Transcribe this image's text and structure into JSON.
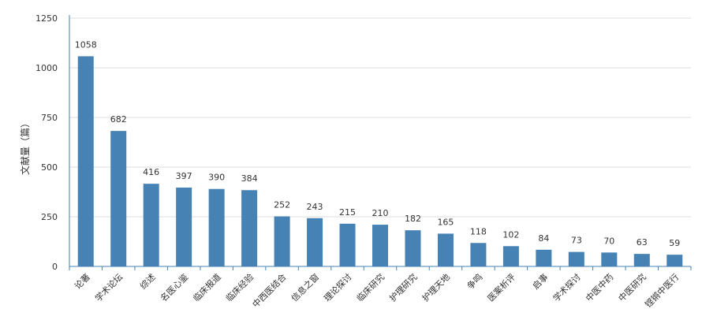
{
  "chart_data": {
    "type": "bar",
    "title": "",
    "xlabel": "",
    "ylabel": "文献量（篇）",
    "ylim": [
      0,
      1250
    ],
    "yticks": [
      0,
      250,
      500,
      750,
      1000,
      1250
    ],
    "grid": true,
    "legend": "none",
    "bar_color": "#4682b4",
    "categories": [
      "论著",
      "学术论坛",
      "综述",
      "名医心鉴",
      "临床报道",
      "临床经验",
      "中西医结合",
      "信息之窗",
      "理论探讨",
      "临床研究",
      "护理研究",
      "护理天地",
      "争鸣",
      "医案析评",
      "启事",
      "学术探讨",
      "中医中药",
      "中医研究",
      "铿锵中医行"
    ],
    "values": [
      1058,
      682,
      416,
      397,
      390,
      384,
      252,
      243,
      215,
      210,
      182,
      165,
      118,
      102,
      84,
      73,
      70,
      63,
      59
    ]
  }
}
